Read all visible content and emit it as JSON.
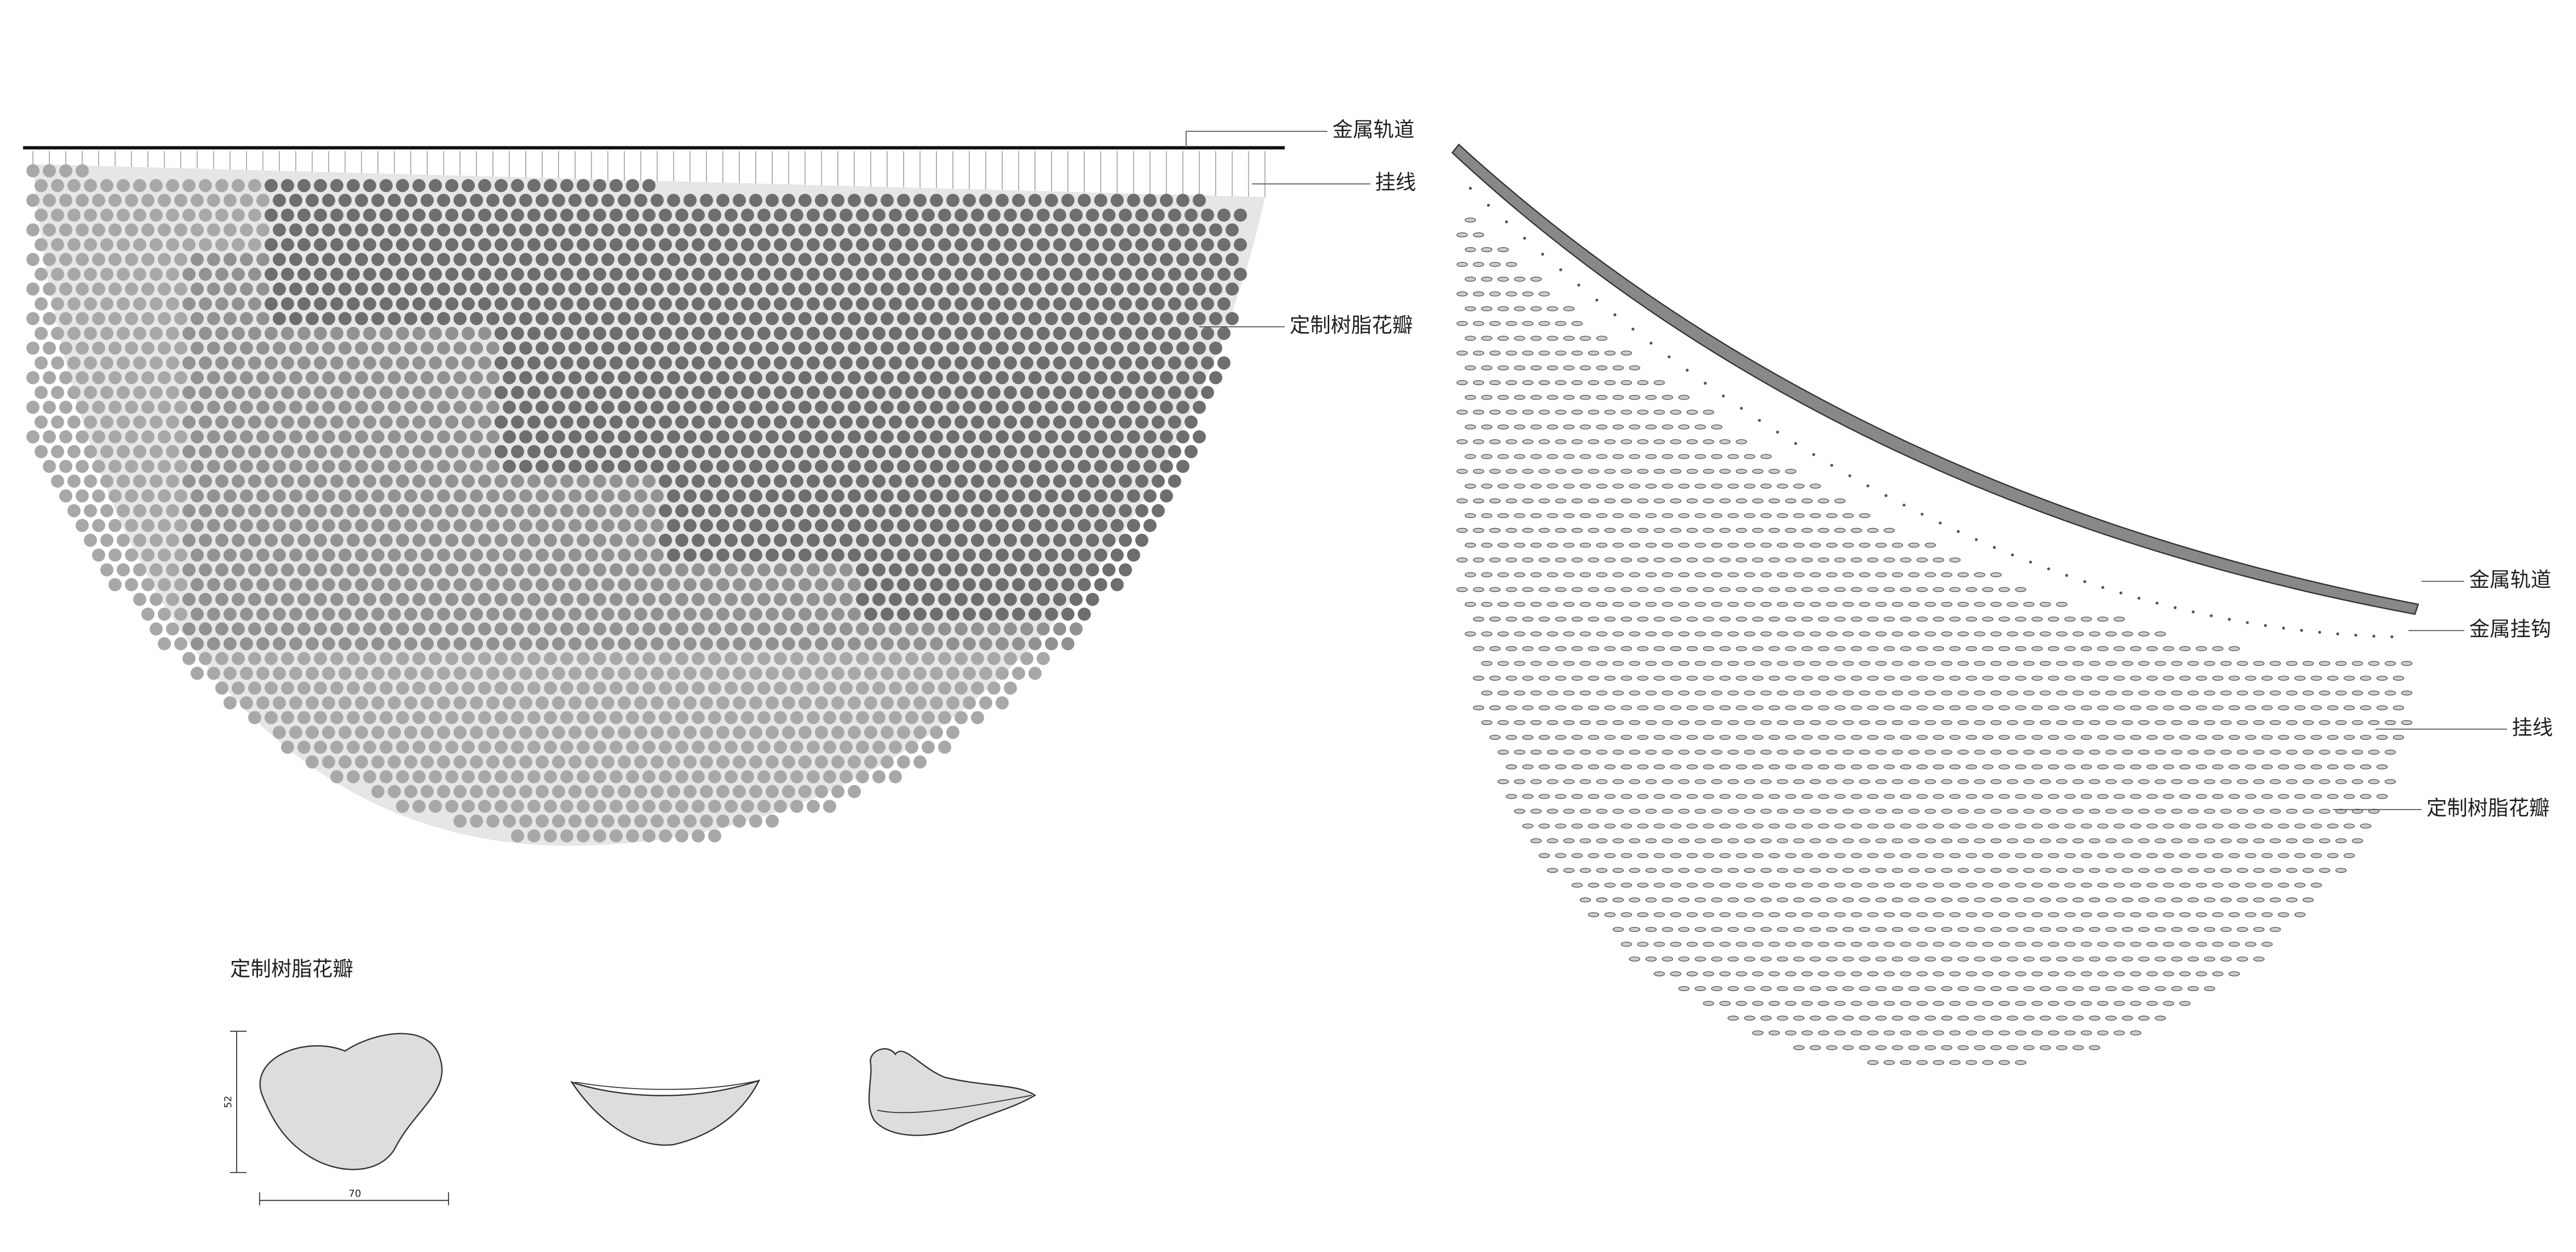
{
  "front_view": {
    "labels": [
      "金属轨道",
      "挂线",
      "定制树脂花瓣"
    ]
  },
  "side_view": {
    "labels": [
      "金属轨道",
      "金属挂钩",
      "挂线",
      "定制树脂花瓣"
    ]
  },
  "petal_detail": {
    "title": "定制树脂花瓣",
    "height": 52,
    "width": 70
  }
}
